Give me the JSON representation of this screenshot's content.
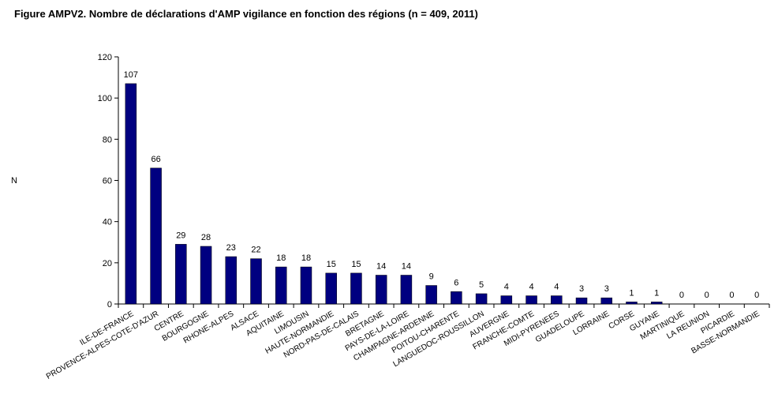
{
  "title": "Figure AMPV2. Nombre de déclarations d'AMP vigilance en fonction des régions (n = 409, 2011)",
  "chart_data": {
    "type": "bar",
    "ylabel": "N",
    "xlabel": "",
    "ylim": [
      0,
      120
    ],
    "yticks": [
      0,
      20,
      40,
      60,
      80,
      100,
      120
    ],
    "grid": false,
    "legend": "none",
    "bar_color": "#000080",
    "categories": [
      "ILE-DE-FRANCE",
      "PROVENCE-ALPES-COTE-D'AZUR",
      "CENTRE",
      "BOURGOGNE",
      "RHONE-ALPES",
      "ALSACE",
      "AQUITAINE",
      "LIMOUSIN",
      "HAUTE-NORMANDIE",
      "NORD-PAS-DE-CALAIS",
      "BRETAGNE",
      "PAYS-DE-LA-LOIRE",
      "CHAMPAGNE-ARDENNE",
      "POITOU-CHARENTE",
      "LANGUEDOC-ROUSSILLON",
      "AUVERGNE",
      "FRANCHE-COMTE",
      "MIDI-PYRENEES",
      "GUADELOUPE",
      "LORRAINE",
      "CORSE",
      "GUYANE",
      "MARTINIQUE",
      "LA REUNION",
      "PICARDIE",
      "BASSE-NORMANDIE"
    ],
    "values": [
      107,
      66,
      29,
      28,
      23,
      22,
      18,
      18,
      15,
      15,
      14,
      14,
      9,
      6,
      5,
      4,
      4,
      4,
      3,
      3,
      1,
      1,
      0,
      0,
      0,
      0
    ]
  }
}
